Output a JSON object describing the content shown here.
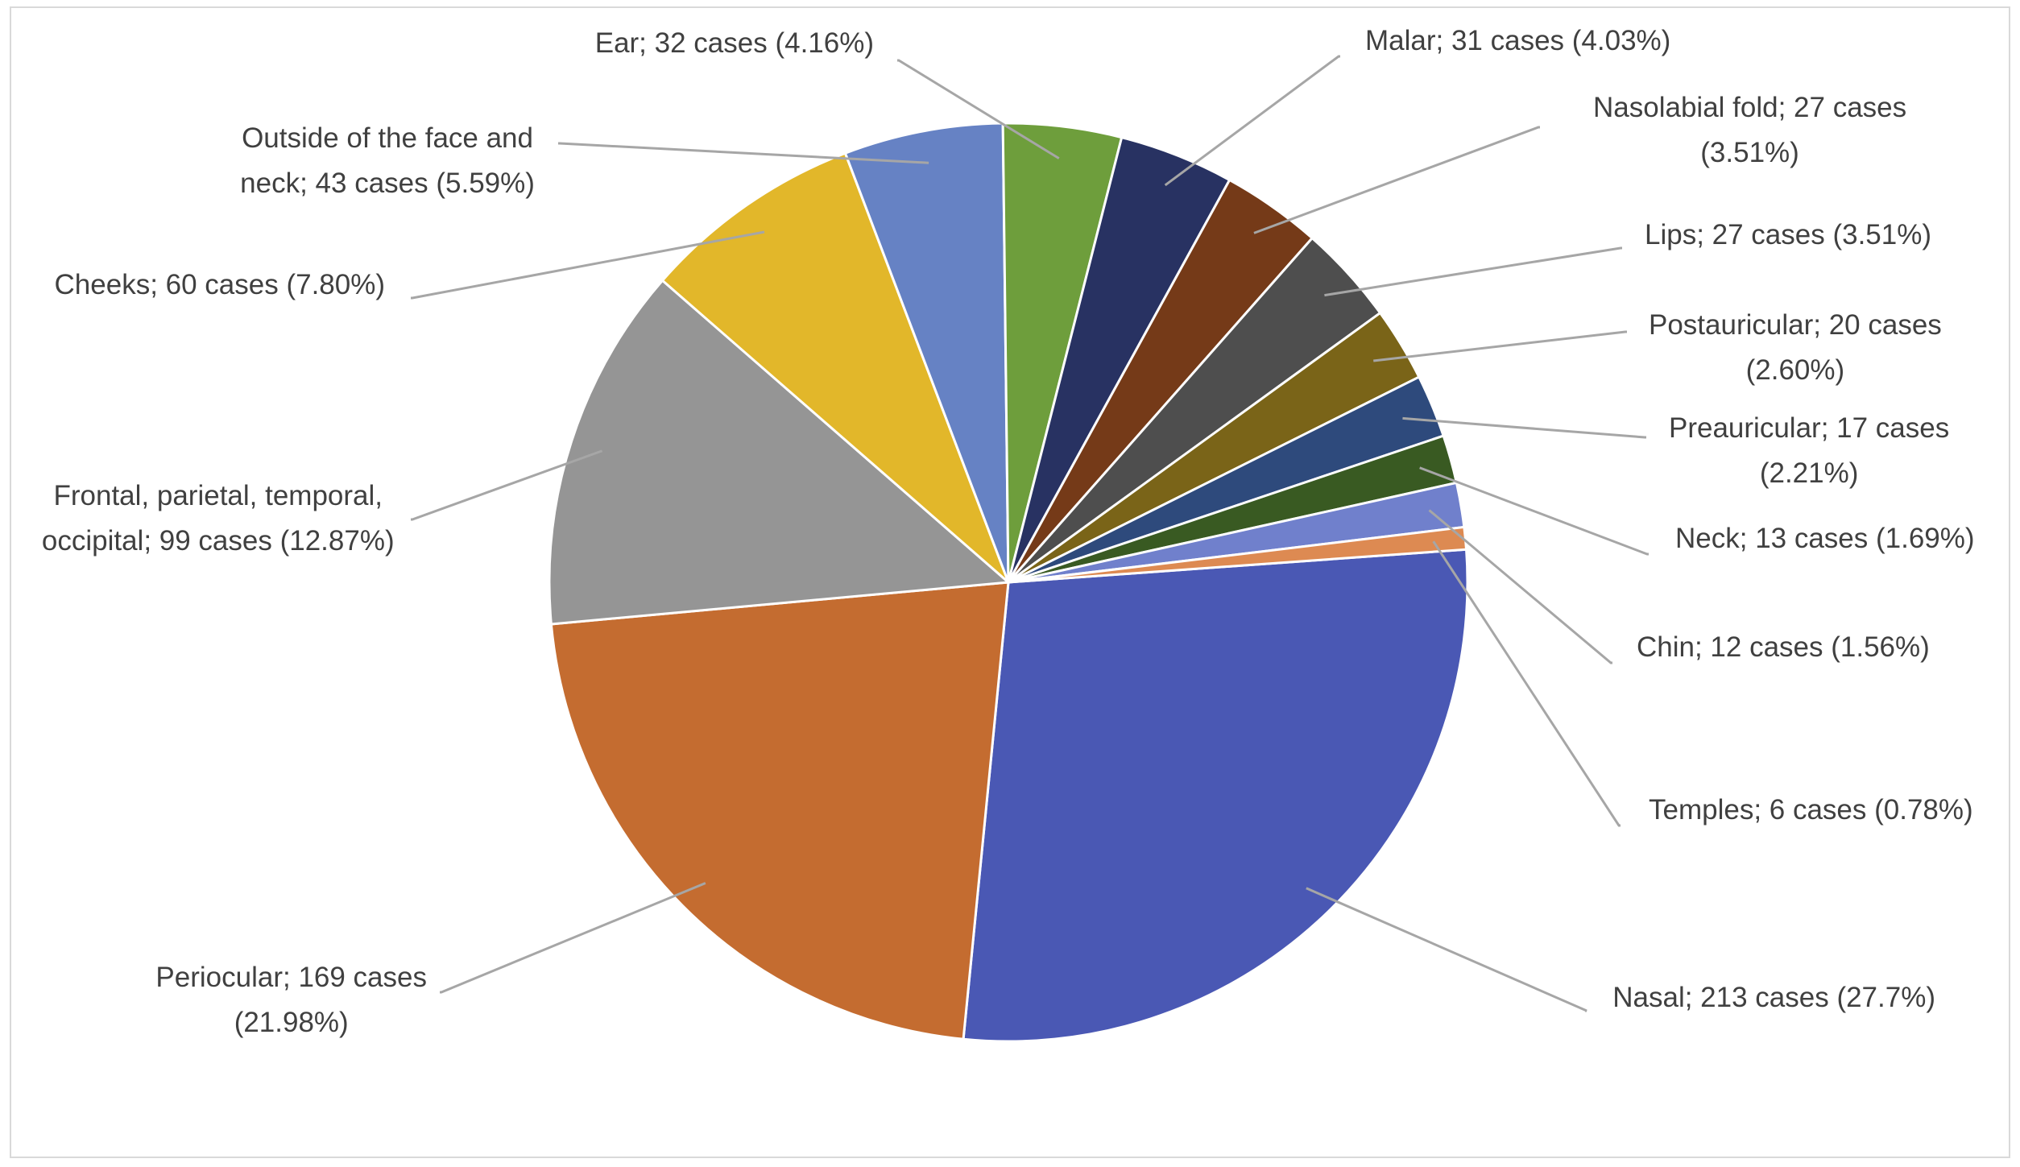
{
  "chart_data": {
    "type": "pie",
    "title": "",
    "slices": [
      {
        "label_lines": [
          "Nasal; 213 cases (27.7%)"
        ],
        "value": 27.7,
        "color": "#4a58b4"
      },
      {
        "label_lines": [
          "Periocular; 169 cases",
          "(21.98%)"
        ],
        "value": 21.98,
        "color": "#c46c30"
      },
      {
        "label_lines": [
          "Frontal, parietal, temporal,",
          "occipital; 99 cases (12.87%)"
        ],
        "value": 12.87,
        "color": "#959595"
      },
      {
        "label_lines": [
          "Cheeks; 60 cases (7.80%)"
        ],
        "value": 7.8,
        "color": "#e2b72a"
      },
      {
        "label_lines": [
          "Outside of the face and",
          "neck; 43 cases (5.59%)"
        ],
        "value": 5.59,
        "color": "#6682c4"
      },
      {
        "label_lines": [
          "Ear; 32 cases (4.16%)"
        ],
        "value": 4.16,
        "color": "#6e9e3c"
      },
      {
        "label_lines": [
          "Malar; 31 cases (4.03%)"
        ],
        "value": 4.03,
        "color": "#283262"
      },
      {
        "label_lines": [
          "Nasolabial fold; 27 cases",
          "(3.51%)"
        ],
        "value": 3.51,
        "color": "#753a18"
      },
      {
        "label_lines": [
          "Lips; 27 cases (3.51%)"
        ],
        "value": 3.51,
        "color": "#4e4e4e"
      },
      {
        "label_lines": [
          "Postauricular; 20 cases",
          "(2.60%)"
        ],
        "value": 2.6,
        "color": "#7a6418"
      },
      {
        "label_lines": [
          "Preauricular; 17 cases",
          "(2.21%)"
        ],
        "value": 2.21,
        "color": "#2e4a7c"
      },
      {
        "label_lines": [
          "Neck; 13 cases (1.69%)"
        ],
        "value": 1.69,
        "color": "#395a22"
      },
      {
        "label_lines": [
          "Chin; 12 cases (1.56%)"
        ],
        "value": 1.56,
        "color": "#7080cc"
      },
      {
        "label_lines": [
          "Temples; 6 cases (0.78%)"
        ],
        "value": 0.78,
        "color": "#dd8a52"
      }
    ]
  }
}
